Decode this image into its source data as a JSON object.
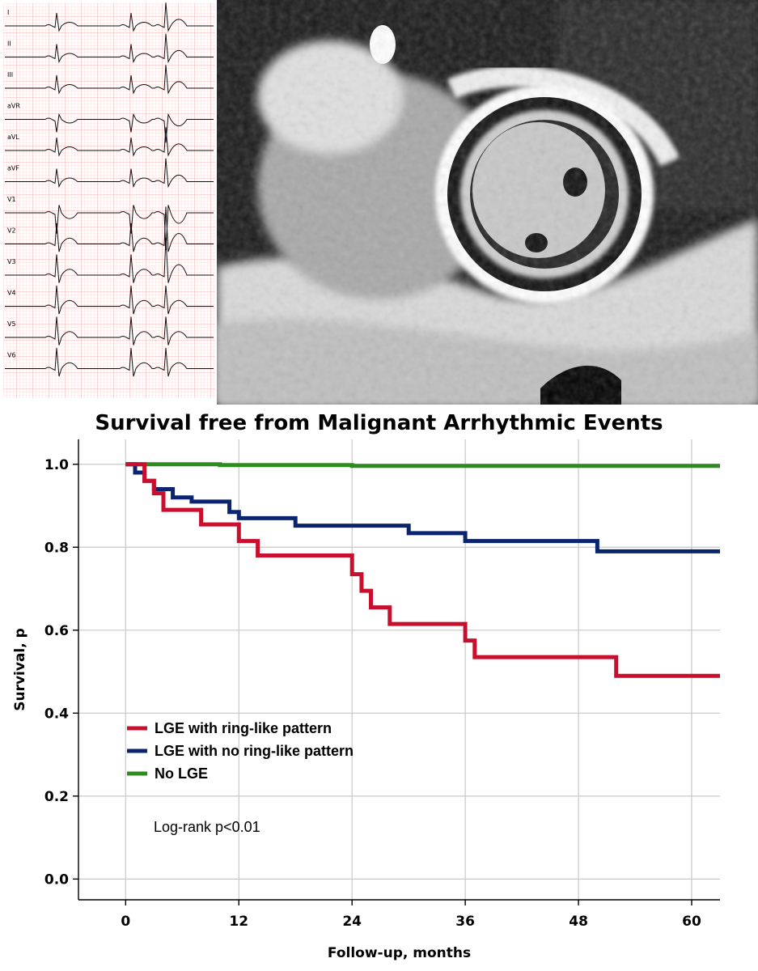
{
  "ecg": {
    "leads": [
      "I",
      "II",
      "III",
      "aVR",
      "aVL",
      "aVF",
      "V1",
      "V2",
      "V3",
      "V4",
      "V5",
      "V6"
    ]
  },
  "mri": {
    "description_icon": "cardiac-mri-short-axis-image"
  },
  "chart_data": {
    "type": "line",
    "title": "Survival free from Malignant Arrhythmic Events",
    "xlabel": "Follow-up, months",
    "ylabel": "Survival, p",
    "xlim": [
      -5,
      63
    ],
    "ylim": [
      -0.05,
      1.06
    ],
    "xticks": [
      0,
      12,
      24,
      36,
      48,
      60
    ],
    "yticks": [
      0.0,
      0.2,
      0.4,
      0.6,
      0.8,
      1.0
    ],
    "ytick_labels": [
      "0.0",
      "0.2",
      "0.4",
      "0.6",
      "0.8",
      "1.0"
    ],
    "grid": true,
    "step": true,
    "legend_position": "lower-left",
    "series": [
      {
        "name": "LGE with ring-like pattern",
        "color": "#C8102E",
        "points": [
          [
            0,
            1.0
          ],
          [
            2,
            1.0
          ],
          [
            2,
            0.96
          ],
          [
            3,
            0.96
          ],
          [
            3,
            0.93
          ],
          [
            4,
            0.93
          ],
          [
            4,
            0.89
          ],
          [
            8,
            0.89
          ],
          [
            8,
            0.855
          ],
          [
            12,
            0.855
          ],
          [
            12,
            0.815
          ],
          [
            14,
            0.815
          ],
          [
            14,
            0.78
          ],
          [
            24,
            0.78
          ],
          [
            24,
            0.735
          ],
          [
            25,
            0.735
          ],
          [
            25,
            0.695
          ],
          [
            26,
            0.695
          ],
          [
            26,
            0.655
          ],
          [
            28,
            0.655
          ],
          [
            28,
            0.615
          ],
          [
            36,
            0.615
          ],
          [
            36,
            0.575
          ],
          [
            37,
            0.575
          ],
          [
            37,
            0.535
          ],
          [
            52,
            0.535
          ],
          [
            52,
            0.49
          ],
          [
            63,
            0.49
          ]
        ]
      },
      {
        "name": "LGE with no ring-like pattern",
        "color": "#0A2470",
        "points": [
          [
            0,
            1.0
          ],
          [
            1,
            1.0
          ],
          [
            1,
            0.98
          ],
          [
            2,
            0.98
          ],
          [
            2,
            0.96
          ],
          [
            3,
            0.96
          ],
          [
            3,
            0.94
          ],
          [
            5,
            0.94
          ],
          [
            5,
            0.92
          ],
          [
            7,
            0.92
          ],
          [
            7,
            0.91
          ],
          [
            11,
            0.91
          ],
          [
            11,
            0.885
          ],
          [
            12,
            0.885
          ],
          [
            12,
            0.87
          ],
          [
            18,
            0.87
          ],
          [
            18,
            0.852
          ],
          [
            30,
            0.852
          ],
          [
            30,
            0.834
          ],
          [
            36,
            0.834
          ],
          [
            36,
            0.815
          ],
          [
            50,
            0.815
          ],
          [
            50,
            0.79
          ],
          [
            63,
            0.79
          ]
        ]
      },
      {
        "name": "No LGE",
        "color": "#2E8B1F",
        "points": [
          [
            0,
            1.0
          ],
          [
            10,
            1.0
          ],
          [
            10,
            0.998
          ],
          [
            24,
            0.998
          ],
          [
            24,
            0.996
          ],
          [
            63,
            0.996
          ]
        ]
      }
    ],
    "annotations": [
      "Log-rank p<0.01"
    ]
  }
}
